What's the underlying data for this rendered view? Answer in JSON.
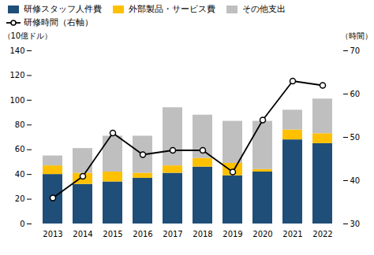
{
  "chart_data": {
    "type": "bar",
    "stacked": true,
    "categories": [
      "2013",
      "2014",
      "2015",
      "2016",
      "2017",
      "2018",
      "2019",
      "2020",
      "2021",
      "2022"
    ],
    "series": [
      {
        "name": "研修スタッフ人件費",
        "type": "bar",
        "color": "#1f4e79",
        "values": [
          40,
          32,
          34,
          37,
          41,
          46,
          39,
          42,
          68,
          65
        ]
      },
      {
        "name": "外部製品・サービス費",
        "type": "bar",
        "color": "#ffc000",
        "values": [
          7,
          9,
          8,
          4,
          6,
          7,
          10,
          2,
          8,
          8
        ]
      },
      {
        "name": "その他支出",
        "type": "bar",
        "color": "#bfbfbf",
        "values": [
          8,
          20,
          29,
          30,
          47,
          35,
          34,
          39,
          16,
          28
        ]
      },
      {
        "name": "研修時間（右軸）",
        "type": "line",
        "axis": "y2",
        "color": "#000000",
        "marker": "circle",
        "values": [
          36,
          41,
          51,
          46,
          47,
          47,
          42,
          54,
          63,
          62
        ]
      }
    ],
    "ylabel": "（10億ドル）",
    "y2label": "（時間）",
    "ylim": [
      0,
      140
    ],
    "yticks": [
      0,
      20,
      40,
      60,
      80,
      100,
      120,
      140
    ],
    "y2lim": [
      30,
      70
    ],
    "y2ticks": [
      30,
      40,
      50,
      60,
      70
    ],
    "grid": false,
    "legend": "upper left"
  }
}
